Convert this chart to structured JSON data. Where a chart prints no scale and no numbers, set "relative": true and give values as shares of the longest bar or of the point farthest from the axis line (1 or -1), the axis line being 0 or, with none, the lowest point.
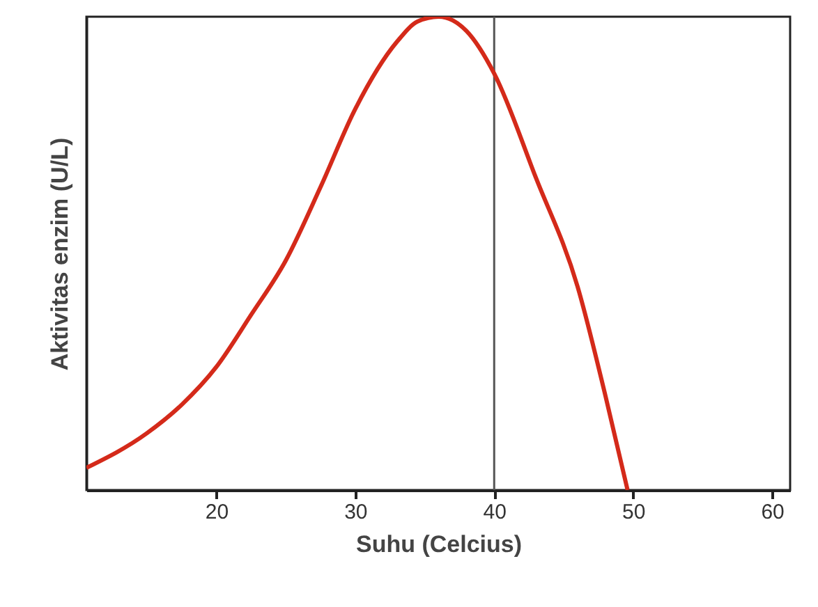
{
  "chart_data": {
    "type": "line",
    "relative": true,
    "xlabel": "Suhu (Celcius)",
    "ylabel": "Aktivitas enzim (U/L)",
    "x": [
      10.65,
      15,
      17.5,
      20,
      22.5,
      25,
      27.5,
      30,
      33,
      34.5,
      36,
      38,
      40,
      43,
      46,
      48,
      49.6
    ],
    "series": [
      {
        "color": "#d42a1a",
        "values": [
          0.047,
          0.12,
          0.18,
          0.26,
          0.37,
          0.485,
          0.64,
          0.805,
          0.947,
          0.99,
          1.0,
          0.97,
          0.88,
          0.66,
          0.43,
          0.2,
          0
        ]
      }
    ],
    "xlim": [
      10.65,
      61.3
    ],
    "xticks": [
      20,
      30,
      40,
      50,
      60
    ],
    "ref_lines": [
      {
        "axis": "x",
        "value": 40,
        "color": "#555555"
      }
    ]
  }
}
